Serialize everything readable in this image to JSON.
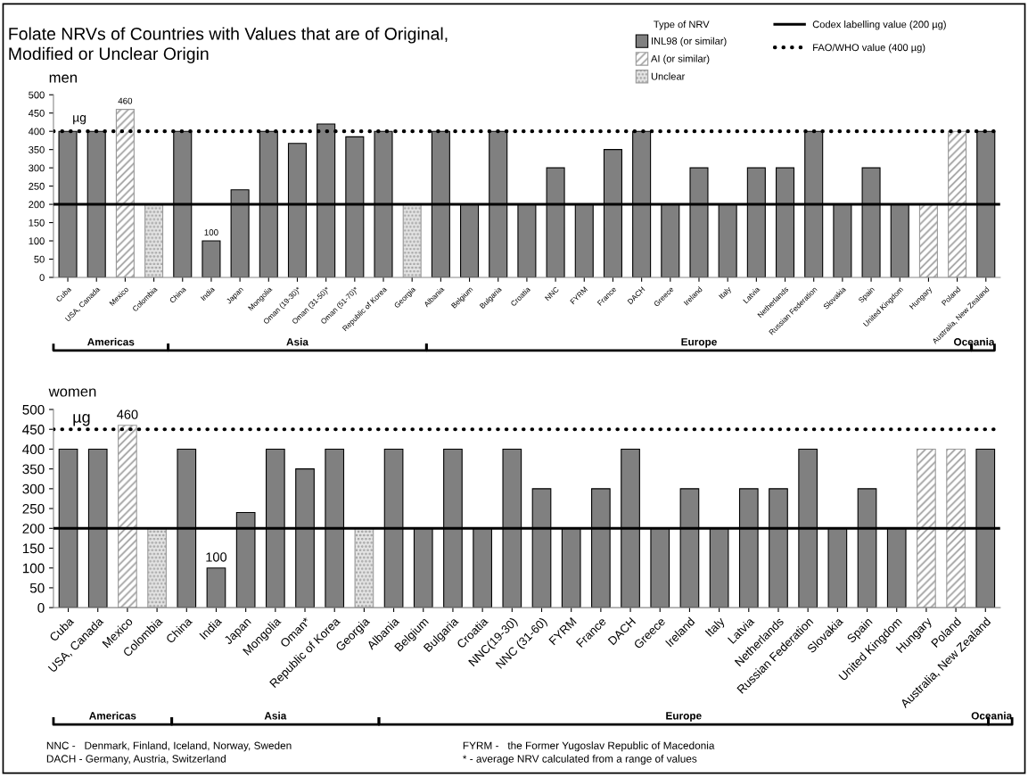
{
  "chart_data": [
    {
      "type": "bar",
      "title": "Folate NRVs of Countries with Values that are of Original, Modified or Unclear Origin",
      "subtitle": "men",
      "ylabel": "µg",
      "legend_title": "Type of NRV",
      "legend": "top right",
      "grid": false,
      "categories": [
        "Cuba",
        "USA, Canada",
        "Mexico",
        "Colombia",
        "China",
        "India",
        "Japan",
        "Mongolia",
        "Oman (19-30)*",
        "Oman (31-50)*",
        "Oman (51-70)*",
        "Republic of Korea",
        "Georgia",
        "Albania",
        "Belgium",
        "Bulgaria",
        "Croatia",
        "NNC",
        "FYRM",
        "France",
        "DACH",
        "Greece",
        "Ireland",
        "Italy",
        "Latvia",
        "Netherlands",
        "Russian Federation",
        "Slovakia",
        "Spain",
        "United Kingdom",
        "Hungary",
        "Poland",
        "Australia, New Zealand"
      ],
      "series": [
        {
          "name": "INL98 (or similar)",
          "color": "#808080",
          "values": [
            400,
            400,
            null,
            null,
            400,
            100,
            240,
            400,
            367,
            420,
            385,
            400,
            null,
            400,
            200,
            400,
            200,
            300,
            200,
            350,
            400,
            200,
            300,
            200,
            300,
            300,
            400,
            200,
            300,
            200,
            null,
            null,
            400
          ],
          "value_labels": [
            null,
            null,
            null,
            null,
            null,
            "100",
            null,
            null,
            null,
            null,
            null,
            null,
            null,
            null,
            null,
            null,
            null,
            null,
            null,
            null,
            null,
            null,
            null,
            null,
            null,
            null,
            null,
            null,
            null,
            null,
            null,
            null,
            null
          ]
        },
        {
          "name": "AI (or similar)",
          "color": "#9a9a9a",
          "values": [
            null,
            null,
            460,
            null,
            null,
            null,
            null,
            null,
            null,
            null,
            null,
            null,
            null,
            null,
            null,
            null,
            null,
            null,
            null,
            null,
            null,
            null,
            null,
            null,
            null,
            null,
            null,
            null,
            null,
            null,
            200,
            400,
            null
          ],
          "value_labels": [
            null,
            null,
            "460",
            null,
            null,
            null,
            null,
            null,
            null,
            null,
            null,
            null,
            null,
            null,
            null,
            null,
            null,
            null,
            null,
            null,
            null,
            null,
            null,
            null,
            null,
            null,
            null,
            null,
            null,
            null,
            null,
            null,
            null
          ]
        },
        {
          "name": "Unclear",
          "color": "#9a9a9a",
          "values": [
            null,
            null,
            null,
            200,
            null,
            null,
            null,
            null,
            null,
            null,
            null,
            null,
            200,
            null,
            null,
            null,
            null,
            null,
            null,
            null,
            null,
            null,
            null,
            null,
            null,
            null,
            null,
            null,
            null,
            null,
            null,
            null,
            null
          ]
        }
      ],
      "ylim": [
        0,
        500
      ],
      "yticks": [
        0,
        50,
        100,
        150,
        200,
        250,
        300,
        350,
        400,
        450,
        500
      ],
      "ref_lines": [
        {
          "axis": "y",
          "value": 200,
          "label": "Codex labelling value (200 µg)",
          "color": "#000000",
          "line_style": "solid"
        },
        {
          "axis": "y",
          "value": 400,
          "label": "FAO/WHO value (400 µg)",
          "color": "#000000",
          "line_style": "dotted"
        }
      ],
      "annotations": [
        "Americas",
        "Asia",
        "Europe",
        "Oceania"
      ]
    },
    {
      "type": "bar",
      "subtitle": "women",
      "ylabel": "µg",
      "grid": false,
      "categories": [
        "Cuba",
        "USA, Canada",
        "Mexico",
        "Colombia",
        "China",
        "India",
        "Japan",
        "Mongolia",
        "Oman*",
        "Republic of Korea",
        "Georgia",
        "Albania",
        "Belgium",
        "Bulgaria",
        "Croatia",
        "NNC(19-30)",
        "NNC (31-60)",
        "FYRM",
        "France",
        "DACH",
        "Greece",
        "Ireland",
        "Italy",
        "Latvia",
        "Netherlands",
        "Russian Federation",
        "Slovakia",
        "Spain",
        "United Kingdom",
        "Hungary",
        "Poland",
        "Australia, New Zealand"
      ],
      "series": [
        {
          "color": "#808080",
          "values": [
            400,
            400,
            null,
            null,
            400,
            100,
            240,
            400,
            350,
            400,
            null,
            400,
            200,
            400,
            200,
            400,
            300,
            200,
            300,
            400,
            200,
            300,
            200,
            300,
            300,
            400,
            200,
            300,
            200,
            null,
            null,
            400
          ],
          "value_labels": [
            null,
            null,
            null,
            null,
            null,
            "100",
            null,
            null,
            null,
            null,
            null,
            null,
            null,
            null,
            null,
            null,
            null,
            null,
            null,
            null,
            null,
            null,
            null,
            null,
            null,
            null,
            null,
            null,
            null,
            null,
            null,
            null
          ]
        },
        {
          "color": "#9a9a9a",
          "values": [
            null,
            null,
            460,
            null,
            null,
            null,
            null,
            null,
            null,
            null,
            null,
            null,
            null,
            null,
            null,
            null,
            null,
            null,
            null,
            null,
            null,
            null,
            null,
            null,
            null,
            null,
            null,
            null,
            null,
            400,
            400,
            null
          ],
          "value_labels": [
            null,
            null,
            "460",
            null,
            null,
            null,
            null,
            null,
            null,
            null,
            null,
            null,
            null,
            null,
            null,
            null,
            null,
            null,
            null,
            null,
            null,
            null,
            null,
            null,
            null,
            null,
            null,
            null,
            null,
            null,
            null,
            null
          ]
        },
        {
          "color": "#9a9a9a",
          "values": [
            null,
            null,
            null,
            200,
            null,
            null,
            null,
            null,
            null,
            null,
            200,
            null,
            null,
            null,
            null,
            null,
            null,
            null,
            null,
            null,
            null,
            null,
            null,
            null,
            null,
            null,
            null,
            null,
            null,
            null,
            null,
            null
          ]
        }
      ],
      "ylim": [
        0,
        500
      ],
      "yticks": [
        0,
        50,
        100,
        150,
        200,
        250,
        300,
        350,
        400,
        450,
        500
      ],
      "ref_lines": [
        {
          "axis": "y",
          "value": 200,
          "color": "#000000",
          "line_style": "solid"
        },
        {
          "axis": "y",
          "value": 450,
          "color": "#000000",
          "line_style": "dotted"
        }
      ],
      "annotations": [
        "Americas",
        "Asia",
        "Europe",
        "Oceania",
        "NNC -   Denmark, Finland, Iceland, Norway, Sweden",
        "DACH - Germany, Austria, Switzerland",
        "FYRM -   the Former Yugoslav Republic of Macedonia",
        "* - average NRV calculated from a range of values"
      ]
    }
  ]
}
